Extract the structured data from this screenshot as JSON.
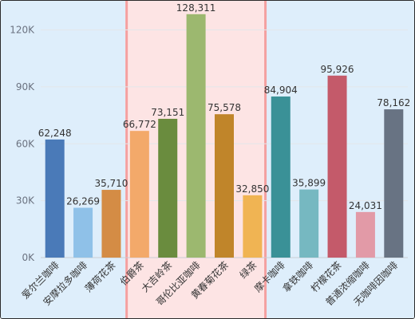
{
  "chart_data": {
    "type": "bar",
    "categories": [
      "爱尔兰咖啡",
      "安摩拉多咖啡",
      "薄荷花茶",
      "伯爵茶",
      "大吉岭茶",
      "哥伦比亚咖啡",
      "黄春菊花茶",
      "绿茶",
      "摩卡咖啡",
      "拿铁咖啡",
      "柠檬花茶",
      "普通浓缩咖啡",
      "无咖啡因咖啡"
    ],
    "values": [
      62248,
      26269,
      35710,
      66772,
      73151,
      128311,
      75578,
      32850,
      84904,
      35899,
      95926,
      24031,
      78162
    ],
    "data_labels": [
      "62,248",
      "26,269",
      "35,710",
      "66,772",
      "73,151",
      "128,311",
      "75,578",
      "32,850",
      "84,904",
      "35,899",
      "95,926",
      "24,031",
      "78,162"
    ],
    "bar_colors": [
      "#4a7ab8",
      "#8fc1e8",
      "#d48c45",
      "#f3a96a",
      "#6a8c3e",
      "#9cb86f",
      "#c0852a",
      "#f0b453",
      "#3a9197",
      "#76b8c1",
      "#c45a6a",
      "#e29aa7",
      "#687383"
    ],
    "y_ticks": [
      0,
      30000,
      60000,
      90000,
      120000
    ],
    "y_tick_labels": [
      "0K",
      "30K",
      "60K",
      "90K",
      "120K"
    ],
    "ylim": [
      0,
      132000
    ],
    "bands": [
      {
        "from": 0,
        "to": 3,
        "color": "#deeefb"
      },
      {
        "from": 3,
        "to": 8,
        "color": "#fde4e4"
      },
      {
        "from": 8,
        "to": 13,
        "color": "#deeefb"
      }
    ],
    "highlight_band": {
      "from": 3,
      "to": 8,
      "color": "#f4a0a0"
    },
    "grid": true,
    "title": "",
    "xlabel": "",
    "ylabel": ""
  }
}
